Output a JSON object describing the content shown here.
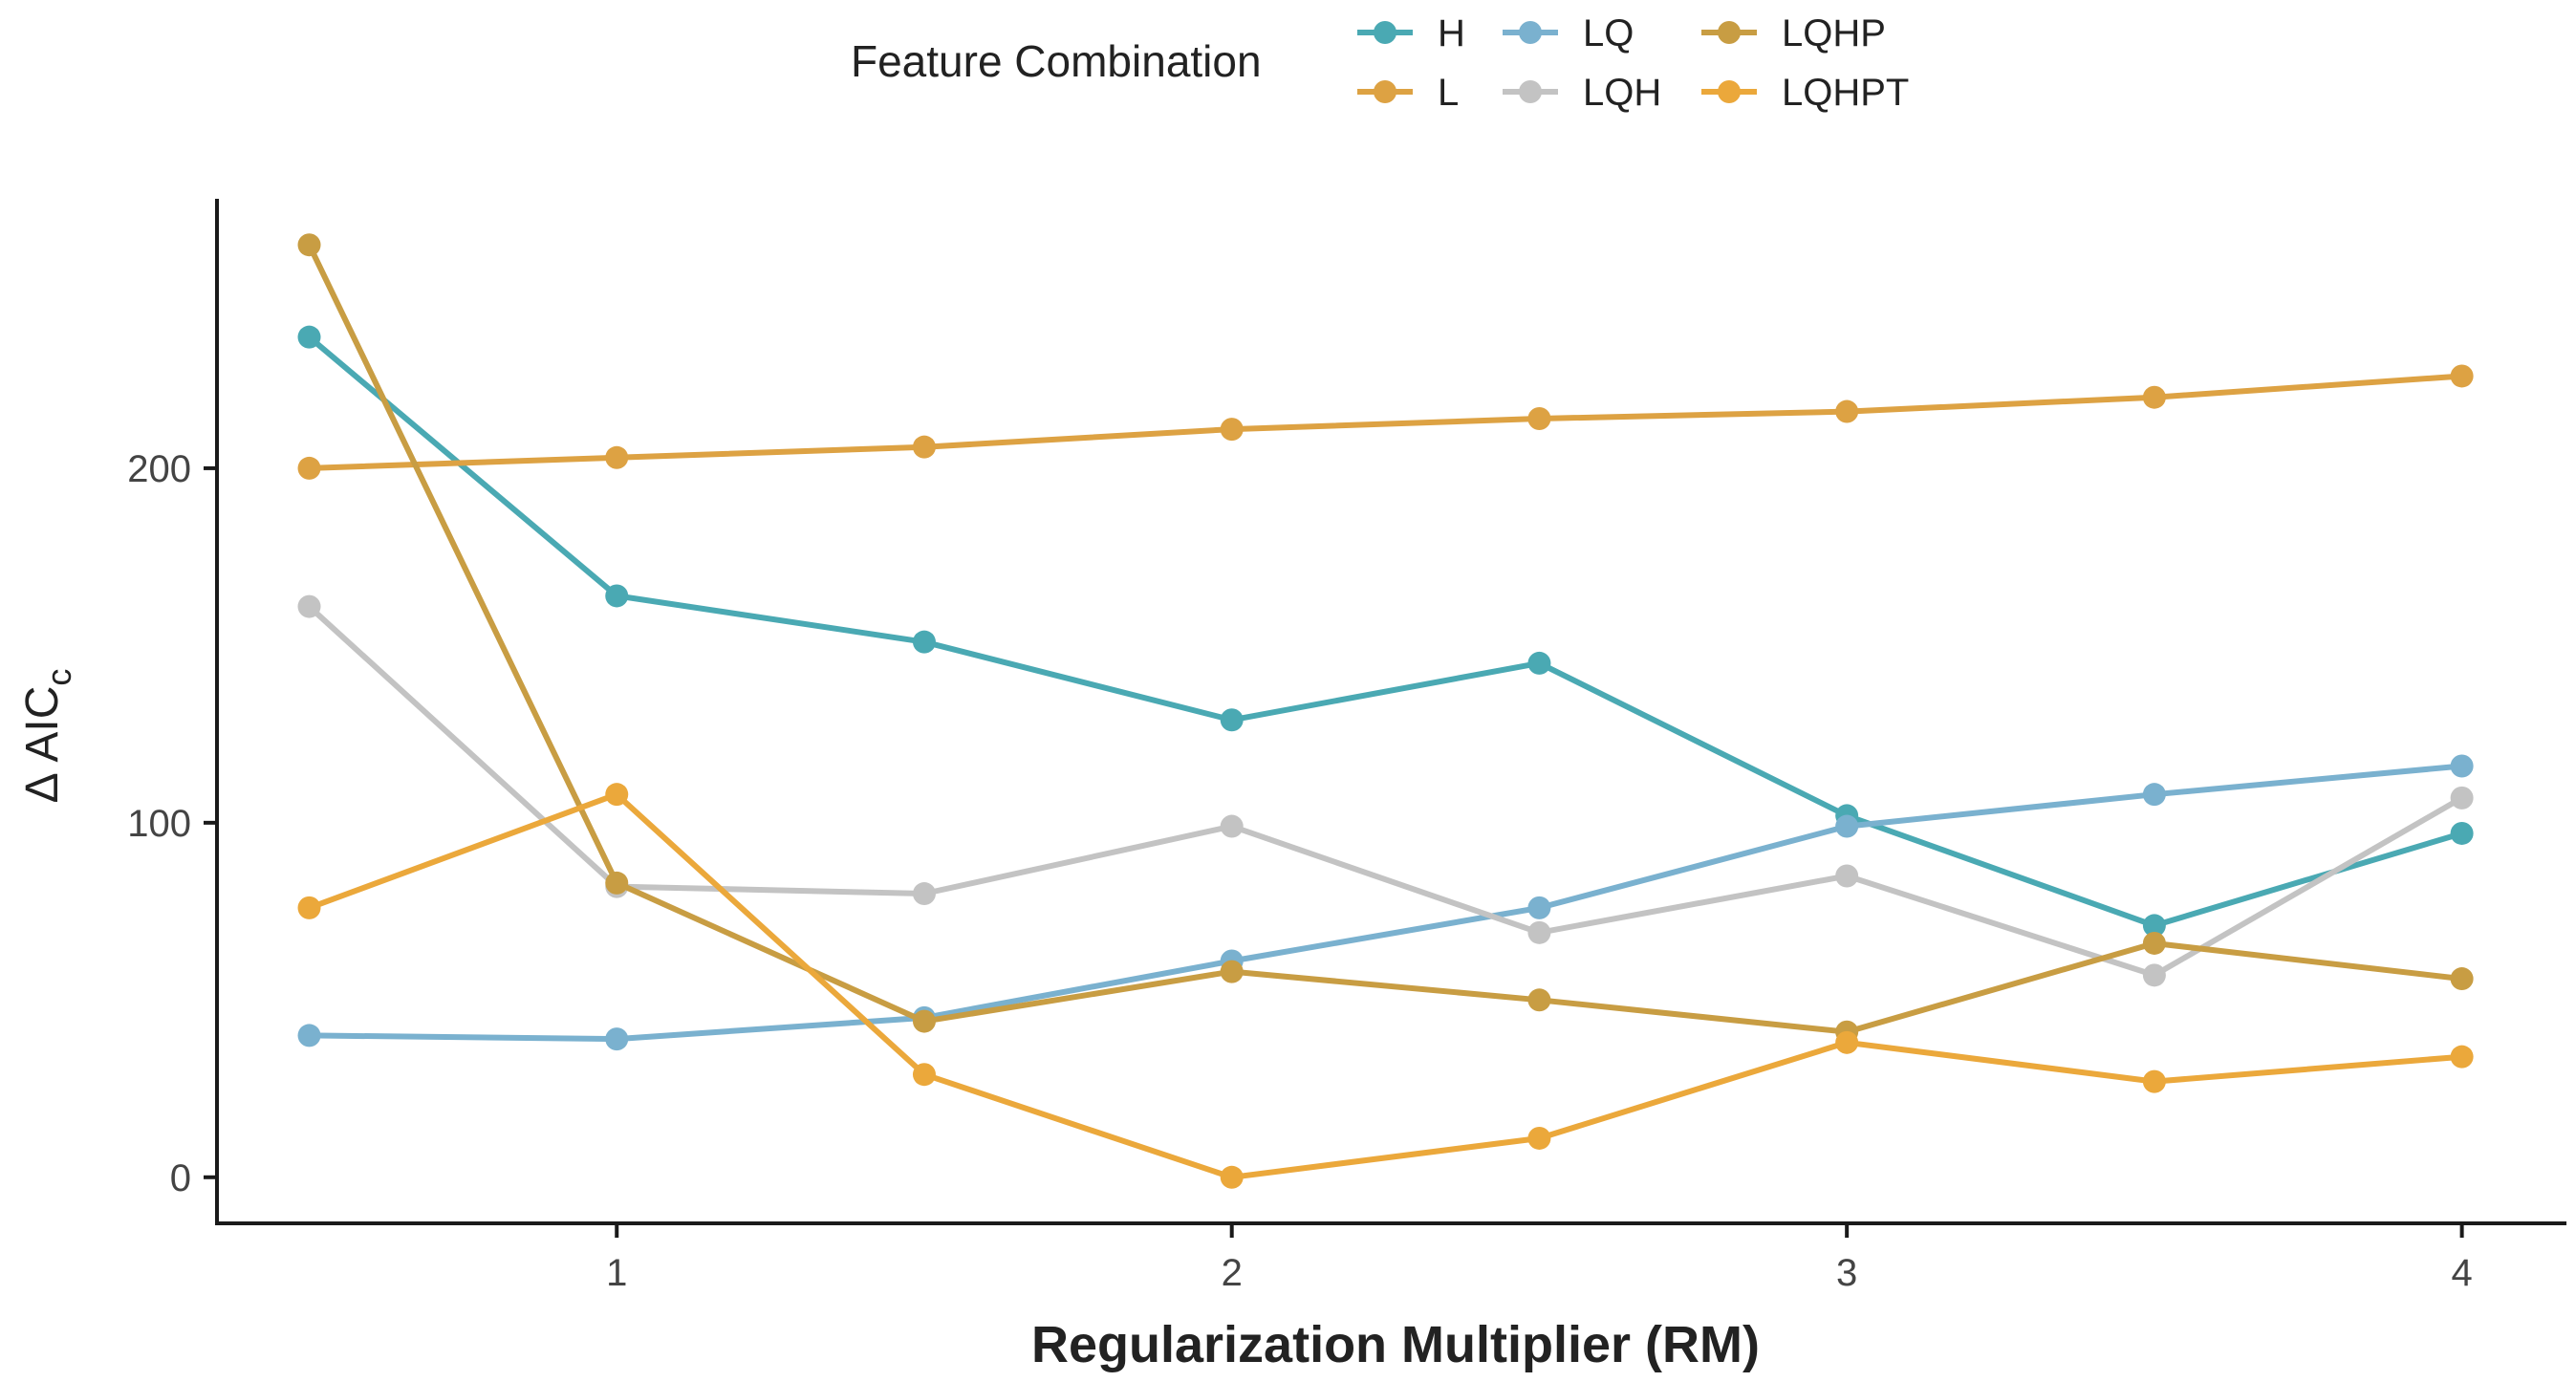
{
  "chart_data": {
    "type": "line",
    "title": "",
    "xlabel": "Regularization Multiplier (RM)",
    "ylabel": "Δ AIC",
    "ylabel_subscript": "c",
    "xlim": [
      0.35,
      4.17
    ],
    "ylim": [
      -13,
      276
    ],
    "x_ticks": [
      1,
      2,
      3,
      4
    ],
    "x_tick_labels": [
      "1",
      "2",
      "3",
      "4"
    ],
    "y_ticks": [
      0,
      100,
      200
    ],
    "y_tick_labels": [
      "0",
      "100",
      "200"
    ],
    "x": [
      0.5,
      1,
      1.5,
      2,
      2.5,
      3,
      3.5,
      4
    ],
    "legend": {
      "title": "Feature Combination",
      "position": "top",
      "entries": [
        "H",
        "L",
        "LQ",
        "LQH",
        "LQHP",
        "LQHPT"
      ]
    },
    "series": [
      {
        "name": "H",
        "color": "#4aa9b3",
        "values": [
          237,
          164,
          151,
          129,
          145,
          102,
          71,
          97
        ]
      },
      {
        "name": "L",
        "color": "#dda243",
        "values": [
          200,
          203,
          206,
          211,
          214,
          216,
          220,
          226
        ]
      },
      {
        "name": "LQ",
        "color": "#7ab1cf",
        "values": [
          40,
          39,
          45,
          61,
          76,
          99,
          108,
          116
        ]
      },
      {
        "name": "LQH",
        "color": "#c3c3c3",
        "values": [
          161,
          82,
          80,
          99,
          69,
          85,
          57,
          107
        ]
      },
      {
        "name": "LQHP",
        "color": "#c89d43",
        "values": [
          263,
          83,
          44,
          58,
          50,
          41,
          66,
          56
        ]
      },
      {
        "name": "LQHPT",
        "color": "#eba83b",
        "values": [
          76,
          108,
          29,
          0,
          11,
          38,
          27,
          34
        ]
      }
    ]
  }
}
